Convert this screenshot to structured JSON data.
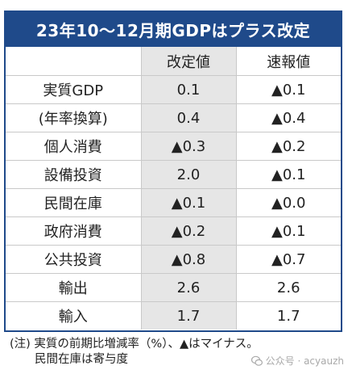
{
  "title": "23年10～12月期GDPはプラス改定",
  "columns": {
    "label": "",
    "revised": "改定値",
    "preliminary": "速報値"
  },
  "rows": [
    {
      "label": "実質GDP",
      "revised": "0.1",
      "preliminary": "▲0.1"
    },
    {
      "label": "(年率換算)",
      "revised": "0.4",
      "preliminary": "▲0.4"
    },
    {
      "label": "個人消費",
      "revised": "▲0.3",
      "preliminary": "▲0.2"
    },
    {
      "label": "設備投資",
      "revised": "2.0",
      "preliminary": "▲0.1"
    },
    {
      "label": "民間在庫",
      "revised": "▲0.1",
      "preliminary": "▲0.0"
    },
    {
      "label": "政府消費",
      "revised": "▲0.2",
      "preliminary": "▲0.1"
    },
    {
      "label": "公共投資",
      "revised": "▲0.8",
      "preliminary": "▲0.7"
    },
    {
      "label": "輸出",
      "revised": "2.6",
      "preliminary": "2.6"
    },
    {
      "label": "輸入",
      "revised": "1.7",
      "preliminary": "1.7"
    }
  ],
  "note": {
    "line1": "(注) 実質の前期比増減率（%）、▲はマイナス。",
    "line2": "民間在庫は寄与度"
  },
  "watermark": {
    "text": "公众号 · acyauzh",
    "icon": "wechat-icon"
  },
  "colors": {
    "header_bg": "#1f4a8a",
    "revised_col_bg": "#e6e6e6"
  }
}
